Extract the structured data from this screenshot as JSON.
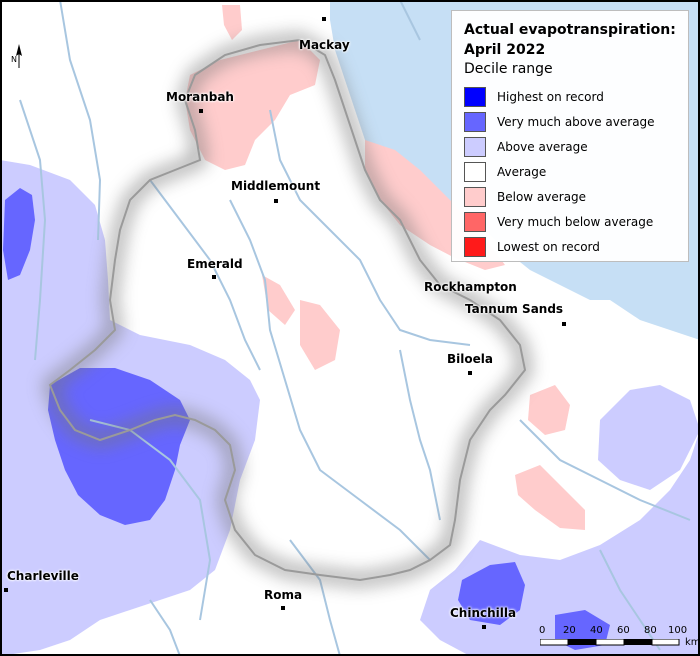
{
  "legend": {
    "title_line1": "Actual evapotranspiration:",
    "title_line2": "April 2022",
    "subtitle": "Decile range",
    "items": [
      {
        "label": "Highest on record",
        "color": "#0000ff"
      },
      {
        "label": "Very much above average",
        "color": "#6666ff"
      },
      {
        "label": "Above average",
        "color": "#ccccff"
      },
      {
        "label": "Average",
        "color": "#ffffff"
      },
      {
        "label": "Below average",
        "color": "#ffcccc"
      },
      {
        "label": "Very much below average",
        "color": "#ff6666"
      },
      {
        "label": "Lowest on record",
        "color": "#ff1a1a"
      }
    ]
  },
  "towns": {
    "mackay": "Mackay",
    "moranbah": "Moranbah",
    "middlemount": "Middlemount",
    "emerald": "Emerald",
    "rockhampton": "Rockhampton",
    "tannum_sands": "Tannum Sands",
    "biloela": "Biloela",
    "charleville": "Charleville",
    "roma": "Roma",
    "chinchilla": "Chinchilla"
  },
  "north_arrow": {
    "label": "N"
  },
  "scale": {
    "ticks": [
      "0",
      "20",
      "40",
      "60",
      "80",
      "100"
    ],
    "unit": "km"
  },
  "colors": {
    "ocean": "#c6dff5",
    "river": "#a8c6e0",
    "boundary": "#a0a0a0"
  }
}
